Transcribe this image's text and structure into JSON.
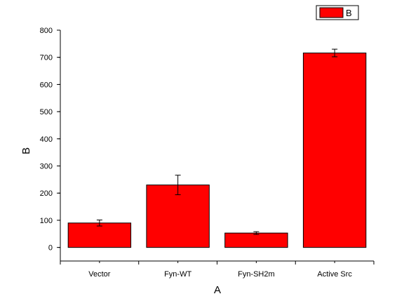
{
  "chart_data": {
    "type": "bar",
    "categories": [
      "Vector",
      "Fyn-WT",
      "Fyn-SH2m",
      "Active Src"
    ],
    "series": [
      {
        "name": "B",
        "values": [
          90,
          230,
          53,
          716
        ],
        "errors": [
          11,
          36,
          5,
          14
        ]
      }
    ],
    "xlabel": "A",
    "ylabel": "B",
    "ylim": [
      -50,
      800
    ],
    "yticks": [
      0,
      100,
      200,
      300,
      400,
      500,
      600,
      700,
      800
    ],
    "grid": false,
    "legend": "top-right",
    "bar_color": "#ff0000",
    "bar_edge_color": "#000000"
  }
}
